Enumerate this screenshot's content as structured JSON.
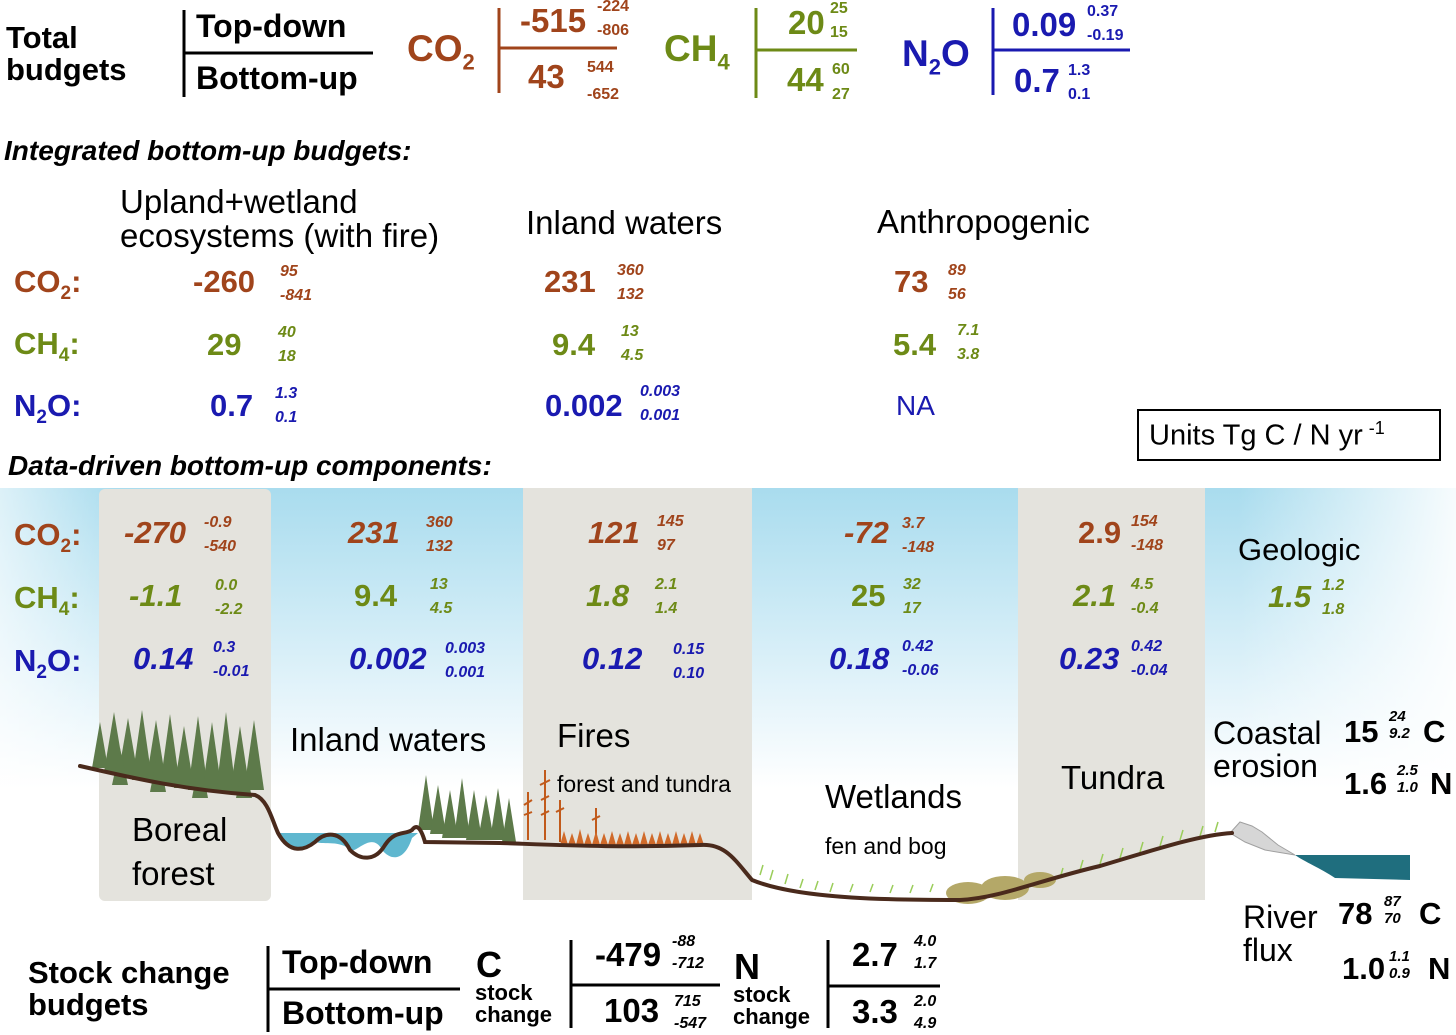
{
  "total_budgets": {
    "title_line1": "Total",
    "title_line2": "budgets",
    "topdown_label": "Top-down",
    "bottomup_label": "Bottom-up",
    "co2": {
      "gas": "CO",
      "sub": "2",
      "td": "-515",
      "td_hi": "-224",
      "td_lo": "-806",
      "bu": "43",
      "bu_hi": "544",
      "bu_lo": "-652"
    },
    "ch4": {
      "gas": "CH",
      "sub": "4",
      "td": "20",
      "td_hi": "25",
      "td_lo": "15",
      "bu": "44",
      "bu_hi": "60",
      "bu_lo": "27"
    },
    "n2o": {
      "gas_pre": "N",
      "sub": "2",
      "gas_post": "O",
      "td": "0.09",
      "td_hi": "0.37",
      "td_lo": "-0.19",
      "bu": "0.7",
      "bu_hi": "1.3",
      "bu_lo": "0.1"
    }
  },
  "integrated": {
    "heading": "Integrated bottom-up budgets:",
    "col1": {
      "line1": "Upland+wetland",
      "line2": "ecosystems (with fire)"
    },
    "col2": "Inland waters",
    "col3": "Anthropogenic",
    "gas_labels": {
      "co2": {
        "gas": "CO",
        "sub": "2",
        "suffix": ":"
      },
      "ch4": {
        "gas": "CH",
        "sub": "4",
        "suffix": ":"
      },
      "n2o": {
        "pre": "N",
        "sub": "2",
        "post": "O:"
      }
    },
    "rows": {
      "co2": [
        {
          "v": "-260",
          "hi": "95",
          "lo": "-841"
        },
        {
          "v": "231",
          "hi": "360",
          "lo": "132"
        },
        {
          "v": "73",
          "hi": "89",
          "lo": "56"
        }
      ],
      "ch4": [
        {
          "v": "29",
          "hi": "40",
          "lo": "18"
        },
        {
          "v": "9.4",
          "hi": "13",
          "lo": "4.5"
        },
        {
          "v": "5.4",
          "hi": "7.1",
          "lo": "3.8"
        }
      ],
      "n2o": [
        {
          "v": "0.7",
          "hi": "1.3",
          "lo": "0.1"
        },
        {
          "v": "0.002",
          "hi": "0.003",
          "lo": "0.001"
        },
        {
          "v": "NA"
        }
      ]
    }
  },
  "units": {
    "text": "Units Tg C / N yr",
    "sup": "-1"
  },
  "data_driven": {
    "heading": "Data-driven bottom-up components:",
    "co2": [
      {
        "v": "-270",
        "hi": "-0.9",
        "lo": "-540"
      },
      {
        "v": "231",
        "hi": "360",
        "lo": "132"
      },
      {
        "v": "121",
        "hi": "145",
        "lo": "97"
      },
      {
        "v": "-72",
        "hi": "3.7",
        "lo": "-148"
      },
      {
        "v": "2.9",
        "hi": "154",
        "lo": "-148"
      }
    ],
    "ch4": [
      {
        "v": "-1.1",
        "hi": "0.0",
        "lo": "-2.2"
      },
      {
        "v": "9.4",
        "hi": "13",
        "lo": "4.5"
      },
      {
        "v": "1.8",
        "hi": "2.1",
        "lo": "1.4"
      },
      {
        "v": "25",
        "hi": "32",
        "lo": "17"
      },
      {
        "v": "2.1",
        "hi": "4.5",
        "lo": "-0.4"
      }
    ],
    "n2o": [
      {
        "v": "0.14",
        "hi": "0.3",
        "lo": "-0.01"
      },
      {
        "v": "0.002",
        "hi": "0.003",
        "lo": "0.001"
      },
      {
        "v": "0.12",
        "hi": "0.15",
        "lo": "0.10"
      },
      {
        "v": "0.18",
        "hi": "0.42",
        "lo": "-0.06"
      },
      {
        "v": "0.23",
        "hi": "0.42",
        "lo": "-0.04"
      }
    ],
    "geologic": {
      "label": "Geologic",
      "v": "1.5",
      "hi": "1.2",
      "lo": "1.8"
    }
  },
  "scene": {
    "boreal": {
      "line1": "Boreal",
      "line2": "forest"
    },
    "inland": "Inland waters",
    "fires": {
      "title": "Fires",
      "sub": "forest and tundra"
    },
    "wetlands": {
      "title": "Wetlands",
      "sub": "fen and bog"
    },
    "tundra": "Tundra"
  },
  "coastal": {
    "line1": "Coastal",
    "line2": "erosion",
    "c": {
      "v": "15",
      "hi": "24",
      "lo": "9.2",
      "unit": "C"
    },
    "n": {
      "v": "1.6",
      "hi": "2.5",
      "lo": "1.0",
      "unit": "N"
    }
  },
  "river": {
    "line1": "River",
    "line2": "flux",
    "c": {
      "v": "78",
      "hi": "87",
      "lo": "70",
      "unit": "C"
    },
    "n": {
      "v": "1.0",
      "hi": "1.1",
      "lo": "0.9",
      "unit": "N"
    }
  },
  "stock": {
    "title_line1": "Stock change",
    "title_line2": "budgets",
    "topdown_label": "Top-down",
    "bottomup_label": "Bottom-up",
    "c": {
      "letter": "C",
      "line1": "stock",
      "line2": "change",
      "td": "-479",
      "td_hi": "-88",
      "td_lo": "-712",
      "bu": "103",
      "bu_hi": "715",
      "bu_lo": "-547"
    },
    "n": {
      "letter": "N",
      "line1": "stock",
      "line2": "change",
      "td": "2.7",
      "td_hi": "4.0",
      "td_lo": "1.7",
      "bu": "3.3",
      "bu_hi": "2.0",
      "bu_lo": "4.9"
    }
  }
}
